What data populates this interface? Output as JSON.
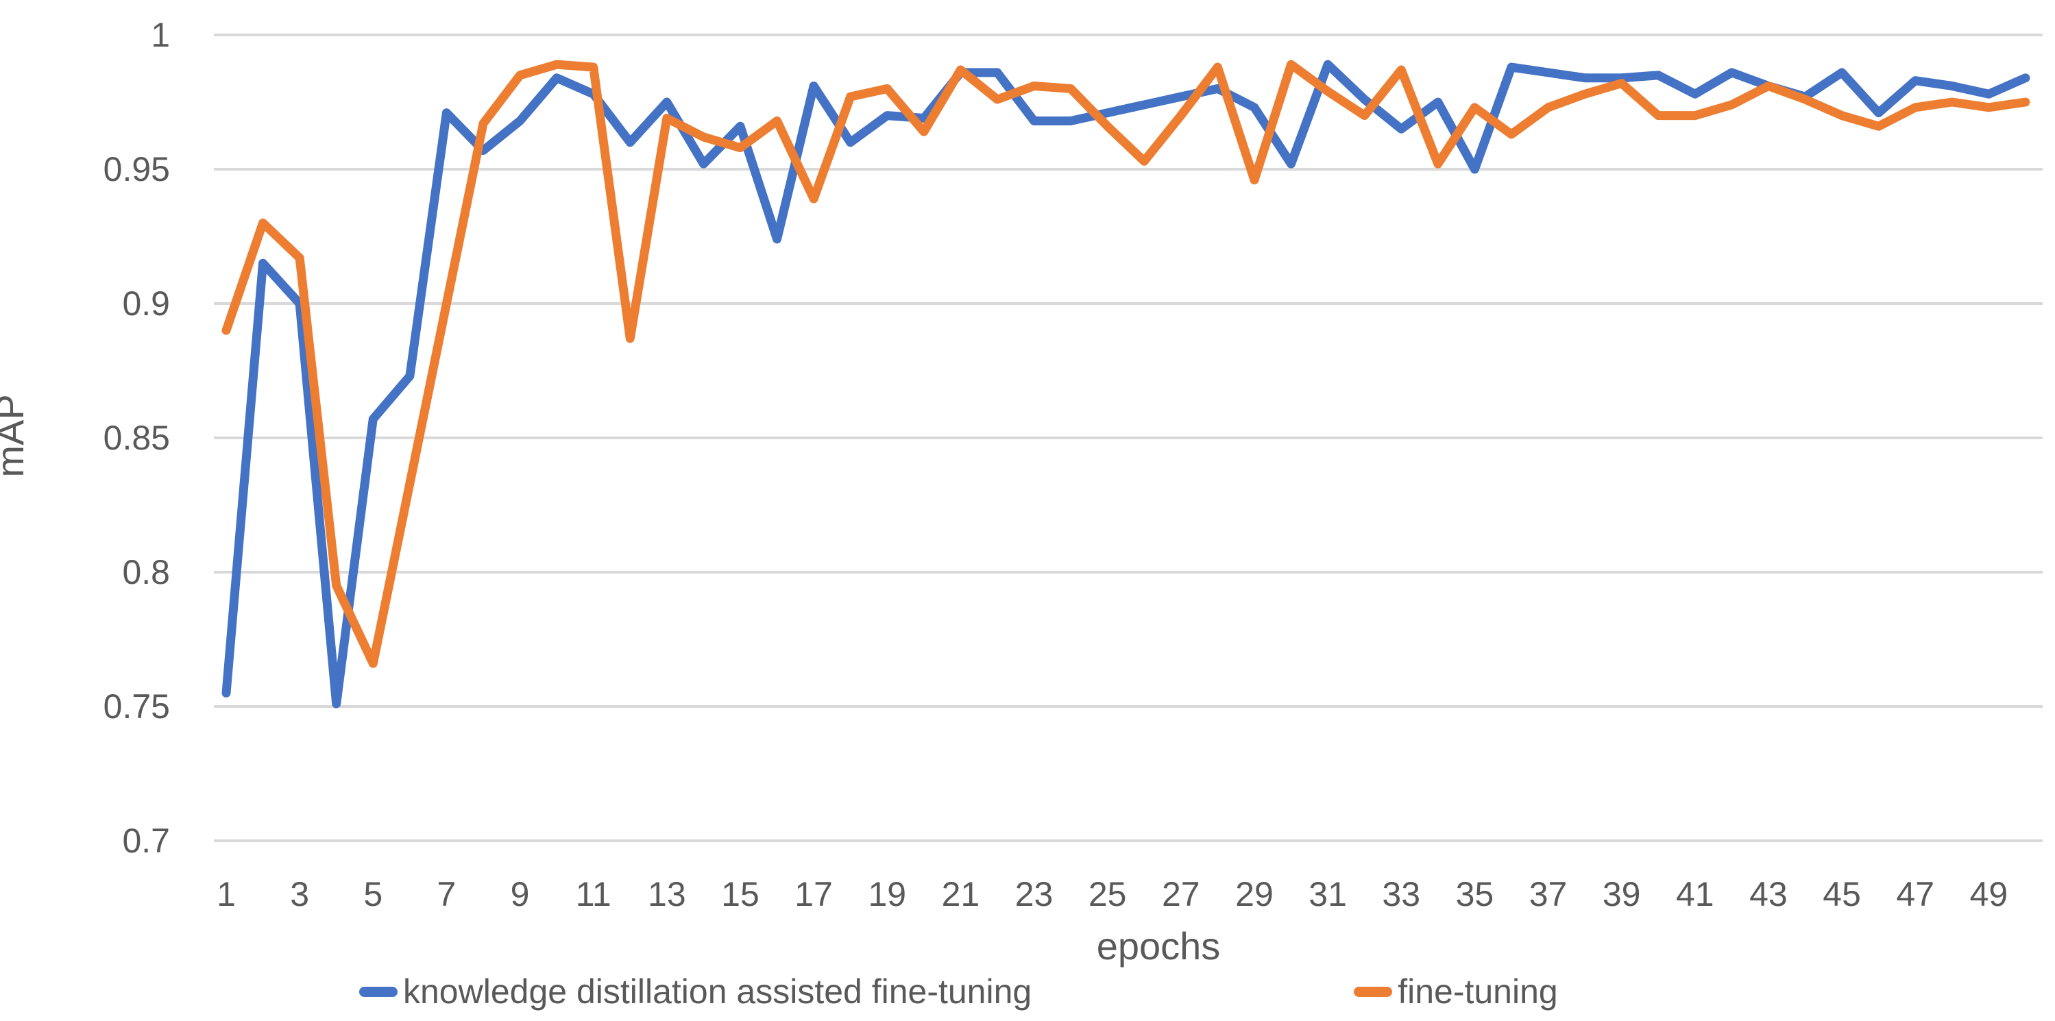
{
  "chart_data": {
    "type": "line",
    "title": "",
    "xlabel": "epochs",
    "ylabel": "mAP",
    "x": [
      1,
      2,
      3,
      4,
      5,
      6,
      7,
      8,
      9,
      10,
      11,
      12,
      13,
      14,
      15,
      16,
      17,
      18,
      19,
      20,
      21,
      22,
      23,
      24,
      25,
      26,
      27,
      28,
      29,
      30,
      31,
      32,
      33,
      34,
      35,
      36,
      37,
      38,
      39,
      40,
      41,
      42,
      43,
      44,
      45,
      46,
      47,
      48,
      49,
      50
    ],
    "x_tick_labels": [
      "1",
      "3",
      "5",
      "7",
      "9",
      "11",
      "13",
      "15",
      "17",
      "19",
      "21",
      "23",
      "25",
      "27",
      "29",
      "31",
      "33",
      "35",
      "37",
      "39",
      "41",
      "43",
      "45",
      "47",
      "49"
    ],
    "y_ticks": [
      1,
      0.95,
      0.9,
      0.85,
      0.8,
      0.75,
      0.7
    ],
    "y_tick_labels": [
      "1",
      "0.95",
      "0.9",
      "0.85",
      "0.8",
      "0.75",
      "0.7"
    ],
    "ylim": [
      0.7,
      1.0
    ],
    "grid": "horizontal",
    "gridline_color": "#D9D9D9",
    "tick_color": "#595959",
    "legend_position": "bottom",
    "series": [
      {
        "name": "knowledge distillation assisted fine-tuning",
        "color": "#4472C4",
        "values": [
          0.755,
          0.915,
          0.9,
          0.751,
          0.857,
          0.873,
          0.971,
          0.957,
          0.968,
          0.984,
          0.978,
          0.96,
          0.975,
          0.952,
          0.966,
          0.924,
          0.981,
          0.96,
          0.97,
          0.969,
          0.986,
          0.986,
          0.968,
          0.968,
          0.971,
          0.974,
          0.977,
          0.98,
          0.973,
          0.952,
          0.989,
          0.976,
          0.965,
          0.975,
          0.95,
          0.988,
          0.986,
          0.984,
          0.984,
          0.985,
          0.978,
          0.986,
          0.981,
          0.977,
          0.986,
          0.971,
          0.983,
          0.981,
          0.978,
          0.984
        ]
      },
      {
        "name": "fine-tuning",
        "color": "#ED7D31",
        "values": [
          0.89,
          0.93,
          0.917,
          0.795,
          0.766,
          0.833,
          0.9,
          0.967,
          0.985,
          0.989,
          0.988,
          0.887,
          0.969,
          0.962,
          0.958,
          0.968,
          0.939,
          0.977,
          0.98,
          0.964,
          0.987,
          0.976,
          0.981,
          0.98,
          0.966,
          0.953,
          0.97,
          0.988,
          0.946,
          0.989,
          0.979,
          0.97,
          0.987,
          0.952,
          0.973,
          0.963,
          0.973,
          0.978,
          0.982,
          0.97,
          0.97,
          0.974,
          0.981,
          0.976,
          0.97,
          0.966,
          0.973,
          0.975,
          0.973,
          0.975
        ]
      }
    ]
  },
  "axis": {
    "x_label": "epochs",
    "y_label": "mAP"
  },
  "legend": {
    "series1": "knowledge distillation assisted fine-tuning",
    "series2": "fine-tuning"
  }
}
